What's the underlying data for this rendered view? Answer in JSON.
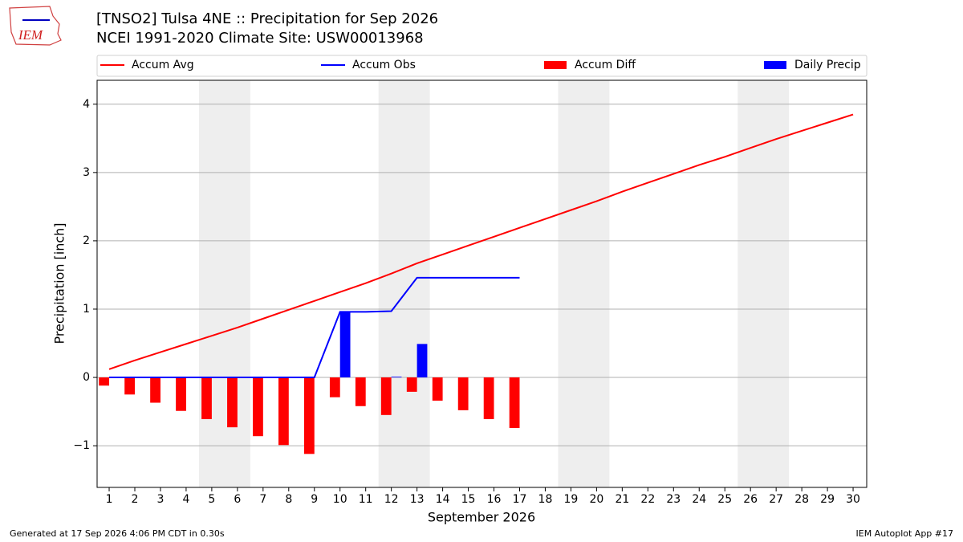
{
  "chart_data": {
    "type": "line_bar",
    "title": "[TNSO2] Tulsa 4NE :: Precipitation for Sep 2026",
    "subtitle": "NCEI 1991-2020 Climate Site: USW00013968",
    "logo_text": "IEM",
    "x_label": "September 2026",
    "y_label": "Precipitation [inch]",
    "footer_left": "Generated at 17 Sep 2026 4:06 PM CDT in 0.30s",
    "footer_right": "IEM Autoplot App #17",
    "x": [
      1,
      2,
      3,
      4,
      5,
      6,
      7,
      8,
      9,
      10,
      11,
      12,
      13,
      14,
      15,
      16,
      17,
      18,
      19,
      20,
      21,
      22,
      23,
      24,
      25,
      26,
      27,
      28,
      29,
      30
    ],
    "xlim": [
      0.53,
      30.53
    ],
    "ylim": [
      -1.61,
      4.35
    ],
    "yticks": [
      {
        "value": -1,
        "label": "−1"
      },
      0,
      1,
      2,
      3,
      4
    ],
    "grid": true,
    "shaded_x_ranges": [
      [
        4.5,
        6.5
      ],
      [
        11.5,
        13.5
      ],
      [
        18.5,
        20.5
      ],
      [
        25.5,
        27.5
      ]
    ],
    "series": [
      {
        "name": "Accum Avg",
        "kind": "line",
        "color": "#ff0000",
        "values": [
          0.12,
          0.25,
          0.37,
          0.49,
          0.61,
          0.73,
          0.86,
          0.99,
          1.12,
          1.25,
          1.38,
          1.52,
          1.67,
          1.8,
          1.93,
          2.06,
          2.19,
          2.32,
          2.45,
          2.58,
          2.72,
          2.85,
          2.98,
          3.11,
          3.23,
          3.36,
          3.49,
          3.61,
          3.73,
          3.85
        ]
      },
      {
        "name": "Accum Obs",
        "kind": "line",
        "color": "#0000ff",
        "values": [
          0,
          0,
          0,
          0,
          0,
          0,
          0,
          0,
          0,
          0.96,
          0.96,
          0.97,
          1.46,
          1.46,
          1.46,
          1.46,
          1.46,
          null,
          null,
          null,
          null,
          null,
          null,
          null,
          null,
          null,
          null,
          null,
          null,
          null
        ]
      },
      {
        "name": "Accum Diff",
        "kind": "bar",
        "color": "#ff0000",
        "values": [
          -0.12,
          -0.25,
          -0.37,
          -0.49,
          -0.61,
          -0.73,
          -0.86,
          -0.99,
          -1.12,
          -0.29,
          -0.42,
          -0.55,
          -0.21,
          -0.34,
          -0.48,
          -0.61,
          -0.74,
          null,
          null,
          null,
          null,
          null,
          null,
          null,
          null,
          null,
          null,
          null,
          null,
          null
        ]
      },
      {
        "name": "Daily Precip",
        "kind": "bar",
        "color": "#0000ff",
        "values": [
          0,
          0,
          0,
          0,
          0,
          0,
          0,
          0,
          0,
          0.96,
          0,
          0.01,
          0.49,
          0,
          0,
          0,
          0,
          null,
          null,
          null,
          null,
          null,
          null,
          null,
          null,
          null,
          null,
          null,
          null,
          null
        ]
      }
    ]
  }
}
